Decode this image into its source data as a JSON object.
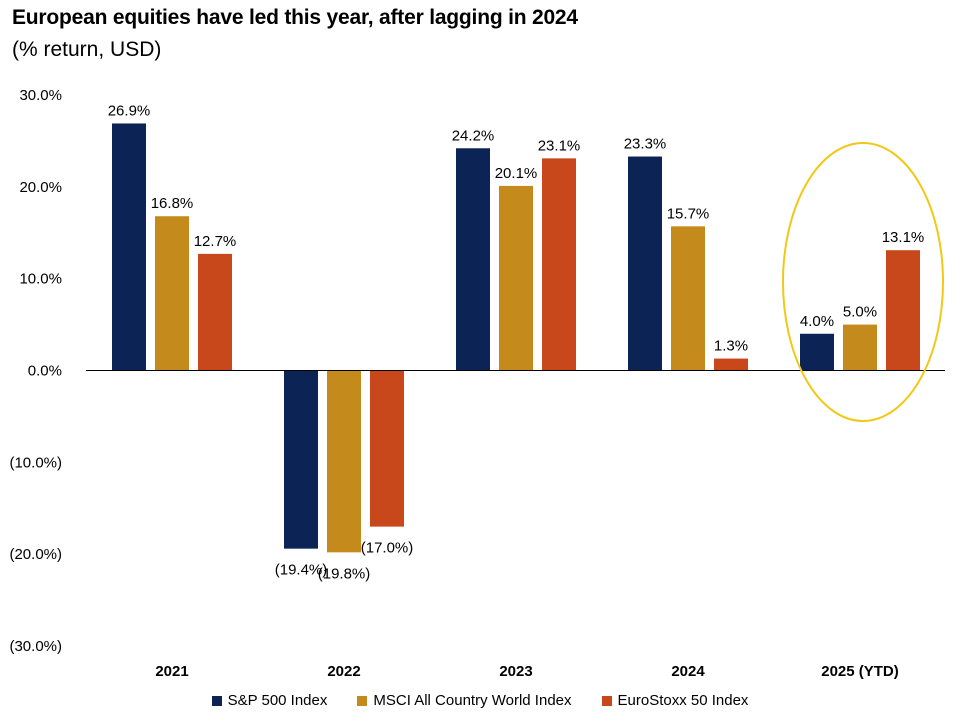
{
  "chart_data": {
    "type": "bar",
    "title": "European equities have led this year, after lagging in 2024",
    "subtitle": "(% return, USD)",
    "categories": [
      "2021",
      "2022",
      "2023",
      "2024",
      "2025 (YTD)"
    ],
    "series": [
      {
        "name": "S&P 500 Index",
        "color": "#0b2355",
        "values": [
          26.9,
          -19.4,
          24.2,
          23.3,
          4.0
        ],
        "labels": [
          "26.9%",
          "(19.4%)",
          "24.2%",
          "23.3%",
          "4.0%"
        ]
      },
      {
        "name": "MSCI All Country World Index",
        "color": "#c48b1c",
        "values": [
          16.8,
          -19.8,
          20.1,
          15.7,
          5.0
        ],
        "labels": [
          "16.8%",
          "(19.8%)",
          "20.1%",
          "15.7%",
          "5.0%"
        ]
      },
      {
        "name": "EuroStoxx 50 Index",
        "color": "#c8481b",
        "values": [
          12.7,
          -17.0,
          23.1,
          1.3,
          13.1
        ],
        "labels": [
          "12.7%",
          "(17.0%)",
          "23.1%",
          "1.3%",
          "13.1%"
        ]
      }
    ],
    "ylim": [
      -30,
      30
    ],
    "yticks": [
      30,
      20,
      10,
      0,
      -10,
      -20,
      -30
    ],
    "ytick_labels": [
      "30.0%",
      "20.0%",
      "10.0%",
      "0.0%",
      "(10.0%)",
      "(20.0%)",
      "(30.0%)"
    ],
    "xlabel": "",
    "ylabel": "",
    "grid": false,
    "legend_position": "bottom-center",
    "highlight": {
      "category": "2025 (YTD)",
      "shape": "ellipse",
      "color": "#f2c815"
    }
  }
}
